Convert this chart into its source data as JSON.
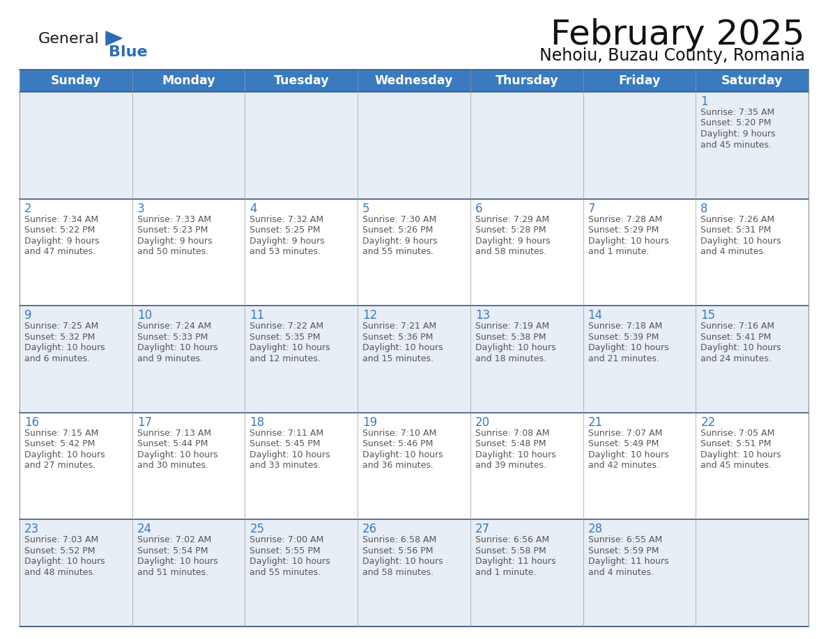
{
  "title": "February 2025",
  "subtitle": "Nehoiu, Buzau County, Romania",
  "header_bg": "#3a7abf",
  "header_text": "#ffffff",
  "row_bg_odd": "#e8eef5",
  "row_bg_even": "#ffffff",
  "day_number_color": "#3a7abf",
  "text_color": "#555555",
  "border_color": "#3a5a80",
  "days_of_week": [
    "Sunday",
    "Monday",
    "Tuesday",
    "Wednesday",
    "Thursday",
    "Friday",
    "Saturday"
  ],
  "logo_color_general": "#1a1a1a",
  "logo_color_blue": "#2a6db5",
  "logo_triangle_color": "#2a6db5",
  "title_color": "#111111",
  "subtitle_color": "#111111",
  "calendar_data": [
    [
      null,
      null,
      null,
      null,
      null,
      null,
      {
        "day": 1,
        "sunrise": "7:35 AM",
        "sunset": "5:20 PM",
        "daylight": "9 hours",
        "daylight2": "and 45 minutes."
      }
    ],
    [
      {
        "day": 2,
        "sunrise": "7:34 AM",
        "sunset": "5:22 PM",
        "daylight": "9 hours",
        "daylight2": "and 47 minutes."
      },
      {
        "day": 3,
        "sunrise": "7:33 AM",
        "sunset": "5:23 PM",
        "daylight": "9 hours",
        "daylight2": "and 50 minutes."
      },
      {
        "day": 4,
        "sunrise": "7:32 AM",
        "sunset": "5:25 PM",
        "daylight": "9 hours",
        "daylight2": "and 53 minutes."
      },
      {
        "day": 5,
        "sunrise": "7:30 AM",
        "sunset": "5:26 PM",
        "daylight": "9 hours",
        "daylight2": "and 55 minutes."
      },
      {
        "day": 6,
        "sunrise": "7:29 AM",
        "sunset": "5:28 PM",
        "daylight": "9 hours",
        "daylight2": "and 58 minutes."
      },
      {
        "day": 7,
        "sunrise": "7:28 AM",
        "sunset": "5:29 PM",
        "daylight": "10 hours",
        "daylight2": "and 1 minute."
      },
      {
        "day": 8,
        "sunrise": "7:26 AM",
        "sunset": "5:31 PM",
        "daylight": "10 hours",
        "daylight2": "and 4 minutes."
      }
    ],
    [
      {
        "day": 9,
        "sunrise": "7:25 AM",
        "sunset": "5:32 PM",
        "daylight": "10 hours",
        "daylight2": "and 6 minutes."
      },
      {
        "day": 10,
        "sunrise": "7:24 AM",
        "sunset": "5:33 PM",
        "daylight": "10 hours",
        "daylight2": "and 9 minutes."
      },
      {
        "day": 11,
        "sunrise": "7:22 AM",
        "sunset": "5:35 PM",
        "daylight": "10 hours",
        "daylight2": "and 12 minutes."
      },
      {
        "day": 12,
        "sunrise": "7:21 AM",
        "sunset": "5:36 PM",
        "daylight": "10 hours",
        "daylight2": "and 15 minutes."
      },
      {
        "day": 13,
        "sunrise": "7:19 AM",
        "sunset": "5:38 PM",
        "daylight": "10 hours",
        "daylight2": "and 18 minutes."
      },
      {
        "day": 14,
        "sunrise": "7:18 AM",
        "sunset": "5:39 PM",
        "daylight": "10 hours",
        "daylight2": "and 21 minutes."
      },
      {
        "day": 15,
        "sunrise": "7:16 AM",
        "sunset": "5:41 PM",
        "daylight": "10 hours",
        "daylight2": "and 24 minutes."
      }
    ],
    [
      {
        "day": 16,
        "sunrise": "7:15 AM",
        "sunset": "5:42 PM",
        "daylight": "10 hours",
        "daylight2": "and 27 minutes."
      },
      {
        "day": 17,
        "sunrise": "7:13 AM",
        "sunset": "5:44 PM",
        "daylight": "10 hours",
        "daylight2": "and 30 minutes."
      },
      {
        "day": 18,
        "sunrise": "7:11 AM",
        "sunset": "5:45 PM",
        "daylight": "10 hours",
        "daylight2": "and 33 minutes."
      },
      {
        "day": 19,
        "sunrise": "7:10 AM",
        "sunset": "5:46 PM",
        "daylight": "10 hours",
        "daylight2": "and 36 minutes."
      },
      {
        "day": 20,
        "sunrise": "7:08 AM",
        "sunset": "5:48 PM",
        "daylight": "10 hours",
        "daylight2": "and 39 minutes."
      },
      {
        "day": 21,
        "sunrise": "7:07 AM",
        "sunset": "5:49 PM",
        "daylight": "10 hours",
        "daylight2": "and 42 minutes."
      },
      {
        "day": 22,
        "sunrise": "7:05 AM",
        "sunset": "5:51 PM",
        "daylight": "10 hours",
        "daylight2": "and 45 minutes."
      }
    ],
    [
      {
        "day": 23,
        "sunrise": "7:03 AM",
        "sunset": "5:52 PM",
        "daylight": "10 hours",
        "daylight2": "and 48 minutes."
      },
      {
        "day": 24,
        "sunrise": "7:02 AM",
        "sunset": "5:54 PM",
        "daylight": "10 hours",
        "daylight2": "and 51 minutes."
      },
      {
        "day": 25,
        "sunrise": "7:00 AM",
        "sunset": "5:55 PM",
        "daylight": "10 hours",
        "daylight2": "and 55 minutes."
      },
      {
        "day": 26,
        "sunrise": "6:58 AM",
        "sunset": "5:56 PM",
        "daylight": "10 hours",
        "daylight2": "and 58 minutes."
      },
      {
        "day": 27,
        "sunrise": "6:56 AM",
        "sunset": "5:58 PM",
        "daylight": "11 hours",
        "daylight2": "and 1 minute."
      },
      {
        "day": 28,
        "sunrise": "6:55 AM",
        "sunset": "5:59 PM",
        "daylight": "11 hours",
        "daylight2": "and 4 minutes."
      },
      null
    ]
  ]
}
